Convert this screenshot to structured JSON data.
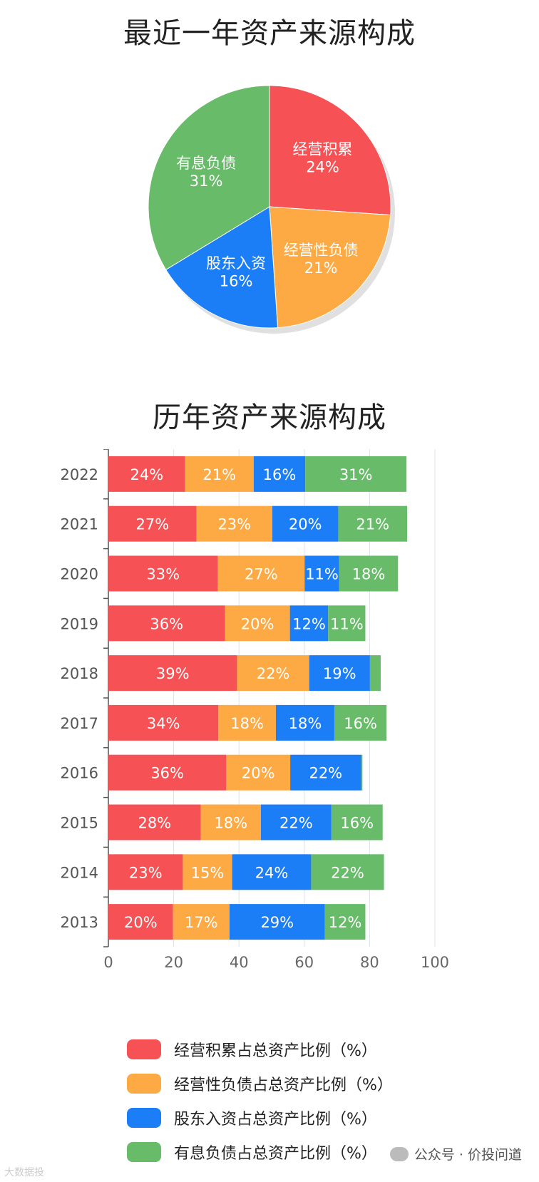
{
  "pie_title": "最近一年资产来源构成",
  "bar_title": "历年资产来源构成",
  "chart_data": [
    {
      "type": "pie",
      "title": "最近一年资产来源构成",
      "slices": [
        {
          "label": "经营积累",
          "value": 24,
          "display": "24%",
          "color": "#f65255"
        },
        {
          "label": "经营性负债",
          "value": 21,
          "display": "21%",
          "color": "#fdaa45"
        },
        {
          "label": "股东入资",
          "value": 16,
          "display": "16%",
          "color": "#1b7ef7"
        },
        {
          "label": "有息负债",
          "value": 31,
          "display": "31%",
          "color": "#67bb69"
        }
      ]
    },
    {
      "type": "bar",
      "orientation": "horizontal",
      "stacked": true,
      "title": "历年资产来源构成",
      "categories": [
        "2022",
        "2021",
        "2020",
        "2019",
        "2018",
        "2017",
        "2016",
        "2015",
        "2014",
        "2013"
      ],
      "xlim": [
        0,
        100
      ],
      "xticks": [
        "0",
        "20",
        "40",
        "60",
        "80",
        "100"
      ],
      "grid": true,
      "legend_position": "bottom",
      "series": [
        {
          "name": "经营积累占总资产比例（%）",
          "color": "#f65255",
          "values": [
            23.5,
            27,
            33.5,
            35.7,
            39.4,
            33.7,
            36.1,
            28.3,
            22.8,
            19.8
          ],
          "labels": [
            "24%",
            "27%",
            "33%",
            "36%",
            "39%",
            "34%",
            "36%",
            "28%",
            "23%",
            "20%"
          ]
        },
        {
          "name": "经营性负债占总资产比例（%）",
          "color": "#fdaa45",
          "values": [
            21,
            23.2,
            26.6,
            19.9,
            22.1,
            17.6,
            19.6,
            18.4,
            15.1,
            17.3
          ],
          "labels": [
            "21%",
            "23%",
            "27%",
            "20%",
            "22%",
            "18%",
            "20%",
            "18%",
            "15%",
            "17%"
          ]
        },
        {
          "name": "股东入资占总资产比例（%）",
          "color": "#1b7ef7",
          "values": [
            15.8,
            20.2,
            10.6,
            11.7,
            18.6,
            17.9,
            21.7,
            21.6,
            24.2,
            29.2
          ],
          "labels": [
            "16%",
            "20%",
            "11%",
            "12%",
            "19%",
            "18%",
            "22%",
            "22%",
            "24%",
            "29%"
          ]
        },
        {
          "name": "有息负债占总资产比例（%）",
          "color": "#67bb69",
          "values": [
            31,
            21.1,
            18,
            11.4,
            3.3,
            16,
            0.4,
            15.7,
            22.3,
            12.4
          ],
          "labels": [
            "31%",
            "21%",
            "18%",
            "11%",
            "",
            "16%",
            "",
            "16%",
            "22%",
            "12%"
          ]
        }
      ]
    }
  ],
  "watermark_right": "公众号 · 价投问道",
  "watermark_left": "大数据投"
}
